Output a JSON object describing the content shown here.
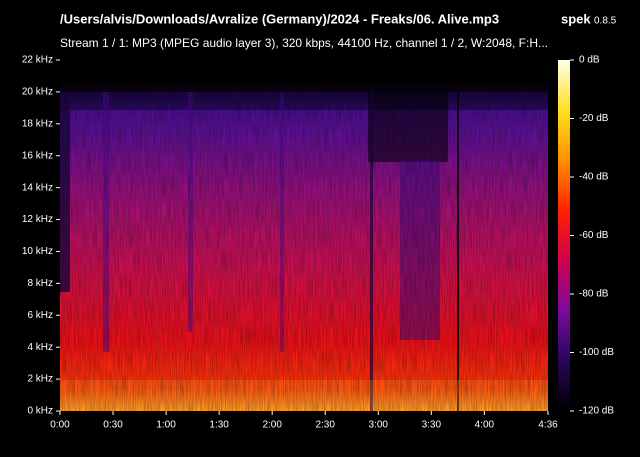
{
  "chart_data": {
    "type": "spectrogram",
    "title": "/Users/alvis/Downloads/Avralize (Germany)/2024 - Freaks/06. Alive.mp3",
    "app_name": "spek",
    "app_version": "0.8.5",
    "subtitle": "Stream 1 / 1: MP3 (MPEG audio layer 3), 320 kbps, 44100 Hz, channel 1 / 2, W:2048, F:H...",
    "xlim": [
      0,
      276
    ],
    "xticks": [
      {
        "value": 0,
        "label": "0:00"
      },
      {
        "value": 30,
        "label": "0:30"
      },
      {
        "value": 60,
        "label": "1:00"
      },
      {
        "value": 90,
        "label": "1:30"
      },
      {
        "value": 120,
        "label": "2:00"
      },
      {
        "value": 150,
        "label": "2:30"
      },
      {
        "value": 180,
        "label": "3:00"
      },
      {
        "value": 210,
        "label": "3:30"
      },
      {
        "value": 240,
        "label": "4:00"
      },
      {
        "value": 276,
        "label": "4:36"
      }
    ],
    "ylim": [
      0,
      22
    ],
    "yticks": [
      {
        "value": 0,
        "label": "0 kHz"
      },
      {
        "value": 2,
        "label": "2 kHz"
      },
      {
        "value": 4,
        "label": "4 kHz"
      },
      {
        "value": 6,
        "label": "6 kHz"
      },
      {
        "value": 8,
        "label": "8 kHz"
      },
      {
        "value": 10,
        "label": "10 kHz"
      },
      {
        "value": 12,
        "label": "12 kHz"
      },
      {
        "value": 14,
        "label": "14 kHz"
      },
      {
        "value": 16,
        "label": "16 kHz"
      },
      {
        "value": 18,
        "label": "18 kHz"
      },
      {
        "value": 20,
        "label": "20 kHz"
      },
      {
        "value": 22,
        "label": "22 kHz"
      }
    ],
    "colorbar_lim": [
      -120,
      0
    ],
    "colorbar_ticks": [
      {
        "value": 0,
        "label": "0 dB"
      },
      {
        "value": -20,
        "label": "-20 dB"
      },
      {
        "value": -40,
        "label": "-40 dB"
      },
      {
        "value": -60,
        "label": "-60 dB"
      },
      {
        "value": -80,
        "label": "-80 dB"
      },
      {
        "value": -100,
        "label": "-100 dB"
      },
      {
        "value": -120,
        "label": "-120 dB"
      }
    ],
    "colormap": [
      "#ffffe8",
      "#ffe020",
      "#ff9000",
      "#ff2000",
      "#d00050",
      "#7a0aa0",
      "#26065a",
      "#000000"
    ]
  }
}
